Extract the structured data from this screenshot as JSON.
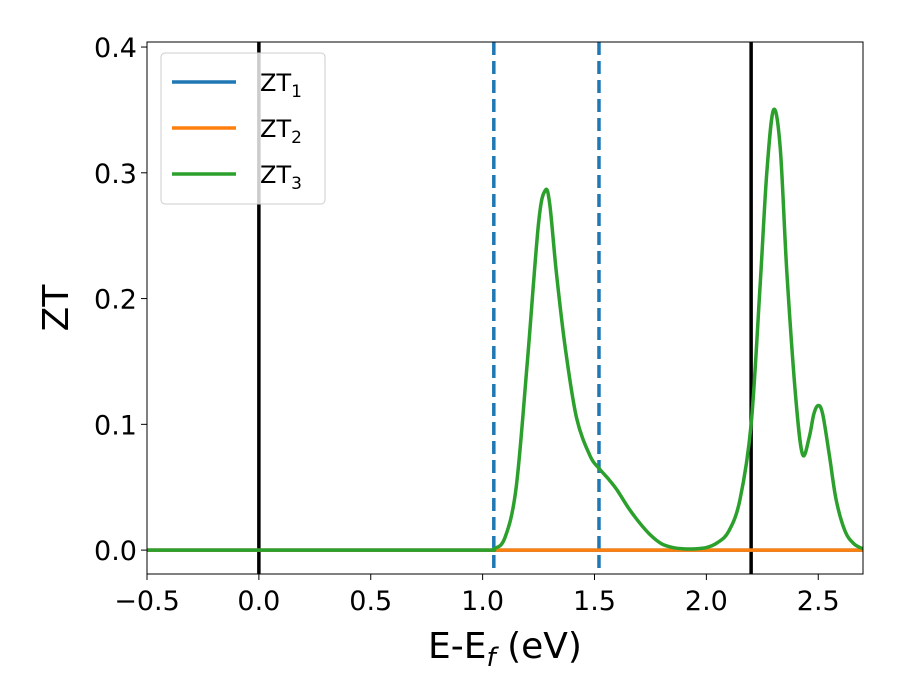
{
  "chart_data": {
    "type": "line",
    "xlabel": {
      "main": "E-E",
      "sub": "f",
      "tail": " (eV)"
    },
    "ylabel": "ZT",
    "xlim": [
      -0.5,
      2.7
    ],
    "ylim": [
      -0.019,
      0.404
    ],
    "x_ticks": [
      -0.5,
      0.0,
      0.5,
      1.0,
      1.5,
      2.0,
      2.5
    ],
    "x_tick_labels": [
      "−0.5",
      "0.0",
      "0.5",
      "1.0",
      "1.5",
      "2.0",
      "2.5"
    ],
    "y_ticks": [
      0.0,
      0.1,
      0.2,
      0.3,
      0.4
    ],
    "y_tick_labels": [
      "0.0",
      "0.1",
      "0.2",
      "0.3",
      "0.4"
    ],
    "grid": false,
    "legend_position": "top-left",
    "series": [
      {
        "name": {
          "base": "ZT",
          "sub": "1"
        },
        "color": "#1f77b4",
        "x": [
          -0.5,
          2.7
        ],
        "y": [
          0.0,
          0.0
        ]
      },
      {
        "name": {
          "base": "ZT",
          "sub": "2"
        },
        "color": "#ff7f0e",
        "x": [
          -0.5,
          2.7
        ],
        "y": [
          0.0,
          0.0
        ]
      },
      {
        "name": {
          "base": "ZT",
          "sub": "3"
        },
        "color": "#2ca02c",
        "x": [
          -0.5,
          0.0,
          0.5,
          1.0,
          1.05,
          1.1,
          1.15,
          1.2,
          1.25,
          1.28,
          1.3,
          1.33,
          1.37,
          1.42,
          1.48,
          1.52,
          1.56,
          1.6,
          1.65,
          1.7,
          1.75,
          1.8,
          1.85,
          1.9,
          1.95,
          2.0,
          2.05,
          2.1,
          2.15,
          2.2,
          2.24,
          2.27,
          2.3,
          2.33,
          2.36,
          2.4,
          2.43,
          2.46,
          2.48,
          2.5,
          2.52,
          2.55,
          2.58,
          2.62,
          2.66,
          2.7
        ],
        "y": [
          0.0,
          0.0,
          0.0,
          0.0,
          0.001,
          0.01,
          0.05,
          0.15,
          0.26,
          0.286,
          0.275,
          0.22,
          0.16,
          0.105,
          0.075,
          0.065,
          0.057,
          0.048,
          0.034,
          0.022,
          0.012,
          0.005,
          0.002,
          0.001,
          0.001,
          0.002,
          0.006,
          0.015,
          0.04,
          0.1,
          0.21,
          0.3,
          0.35,
          0.32,
          0.22,
          0.12,
          0.076,
          0.09,
          0.108,
          0.115,
          0.108,
          0.075,
          0.04,
          0.015,
          0.005,
          0.001
        ]
      }
    ],
    "vlines": [
      {
        "x": 0.0,
        "color": "#000000",
        "style": "solid"
      },
      {
        "x": 2.2,
        "color": "#000000",
        "style": "solid"
      },
      {
        "x": 1.05,
        "color": "#1f77b4",
        "style": "dashed"
      },
      {
        "x": 1.52,
        "color": "#1f77b4",
        "style": "dashed"
      }
    ]
  }
}
